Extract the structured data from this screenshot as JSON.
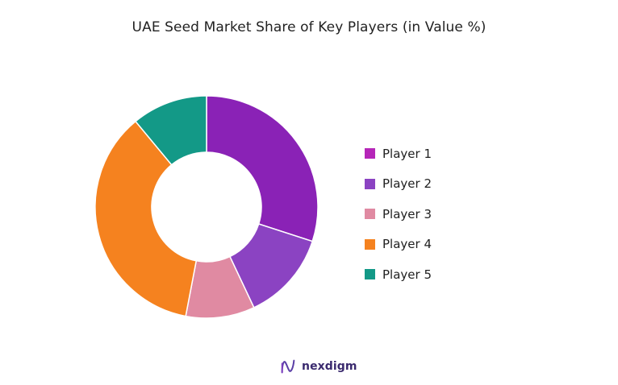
{
  "chart_data": {
    "type": "pie",
    "variant": "donut",
    "title": "UAE Seed Market Share of Key Players (in Value %)",
    "categories": [
      "Player 1",
      "Player 2",
      "Player 3",
      "Player 4",
      "Player 5"
    ],
    "values": [
      30,
      13,
      10,
      36,
      11
    ],
    "colors": [
      "#8a22b6",
      "#8b43c2",
      "#e08aa2",
      "#f5821f",
      "#139987"
    ],
    "legend": {
      "position": "right",
      "entries": [
        {
          "label": "Player 1",
          "color": "#b526b8"
        },
        {
          "label": "Player 2",
          "color": "#8b43c2"
        },
        {
          "label": "Player 3",
          "color": "#e08aa2"
        },
        {
          "label": "Player 4",
          "color": "#f5821f"
        },
        {
          "label": "Player 5",
          "color": "#139987"
        }
      ]
    }
  },
  "branding": {
    "name": "nexdigm",
    "icon": "nexdigm-logo-icon"
  }
}
